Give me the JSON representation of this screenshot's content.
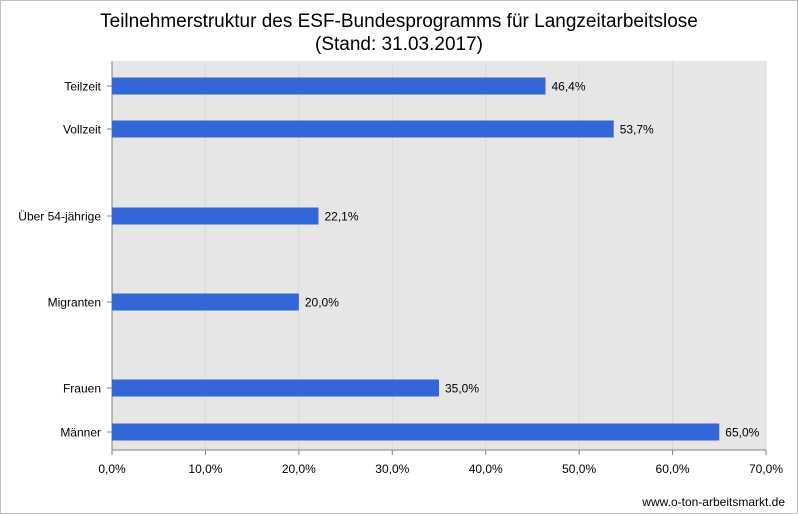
{
  "chart_data": {
    "type": "bar",
    "orientation": "horizontal",
    "title": "Teilnehmerstruktur des ESF-Bundesprogramms für Langzeitarbeitslose",
    "subtitle": "(Stand: 31.03.2017)",
    "categories": [
      "Teilzeit",
      "Vollzeit",
      "Über 54-jährige",
      "Migranten",
      "Frauen",
      "Männer"
    ],
    "values": [
      46.4,
      53.7,
      22.1,
      20.0,
      35.0,
      65.0
    ],
    "value_labels": [
      "46,4%",
      "53,7%",
      "22,1%",
      "20,0%",
      "35,0%",
      "65,0%"
    ],
    "xlim": [
      0,
      70
    ],
    "xticks": [
      0,
      10,
      20,
      30,
      40,
      50,
      60,
      70
    ],
    "xtick_labels": [
      "0,0%",
      "10,0%",
      "20,0%",
      "30,0%",
      "40,0%",
      "50,0%",
      "60,0%",
      "70,0%"
    ],
    "xlabel": "",
    "ylabel": "",
    "grid": true,
    "colors": {
      "bar": "#3366d6",
      "plot_background": "#e6e6e6",
      "gridline": "#d9d9d9"
    }
  },
  "footer": {
    "source": "www.o-ton-arbeitsmarkt.de"
  }
}
